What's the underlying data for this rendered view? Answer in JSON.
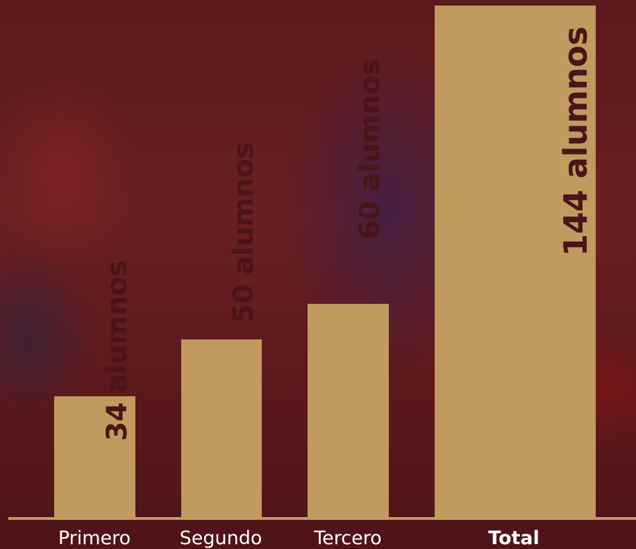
{
  "chart_data": {
    "type": "bar",
    "categories": [
      "Primero",
      "Segundo",
      "Tercero",
      "Total"
    ],
    "values": [
      34,
      50,
      60,
      144
    ],
    "data_labels": [
      "34 alumnos",
      "50 alumnos",
      "60 alumnos",
      "144 alumnos"
    ],
    "bold_categories": [
      "Total"
    ],
    "title": "",
    "xlabel": "",
    "ylabel": "",
    "legend": "none",
    "grid": false,
    "bar_color": "#c19a5f",
    "label_color": "#4a1418",
    "axis_color": "#c19a5f",
    "background_color": "#5c1a1c"
  }
}
